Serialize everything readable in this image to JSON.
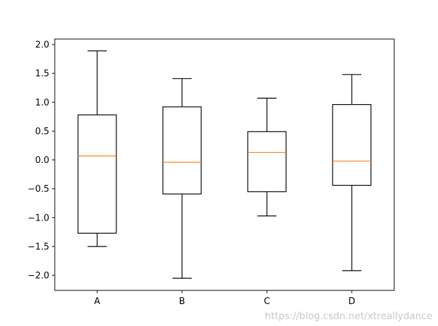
{
  "chart_data": {
    "type": "box",
    "categories": [
      "A",
      "B",
      "C",
      "D"
    ],
    "boxes": [
      {
        "name": "A",
        "whisker_low": -1.5,
        "q1": -1.27,
        "median": 0.07,
        "q3": 0.78,
        "whisker_high": 1.89
      },
      {
        "name": "B",
        "whisker_low": -2.05,
        "q1": -0.59,
        "median": -0.04,
        "q3": 0.92,
        "whisker_high": 1.41
      },
      {
        "name": "C",
        "whisker_low": -0.97,
        "q1": -0.55,
        "median": 0.13,
        "q3": 0.49,
        "whisker_high": 1.07
      },
      {
        "name": "D",
        "whisker_low": -1.92,
        "q1": -0.44,
        "median": -0.02,
        "q3": 0.96,
        "whisker_high": 1.48
      }
    ],
    "ylim": [
      -2.25,
      2.1
    ],
    "yticks": [
      -2.0,
      -1.5,
      -1.0,
      -0.5,
      0.0,
      0.5,
      1.0,
      1.5,
      2.0
    ],
    "ytick_labels": [
      "−2.0",
      "−1.5",
      "−1.0",
      "−0.5",
      "0.0",
      "0.5",
      "1.0",
      "1.5",
      "2.0"
    ],
    "title": "",
    "xlabel": "",
    "ylabel": "",
    "grid": false,
    "colors": {
      "box": "#000000",
      "median": "#ff7f0e"
    }
  },
  "watermark": "https://blog.csdn.net/xtreallydance"
}
